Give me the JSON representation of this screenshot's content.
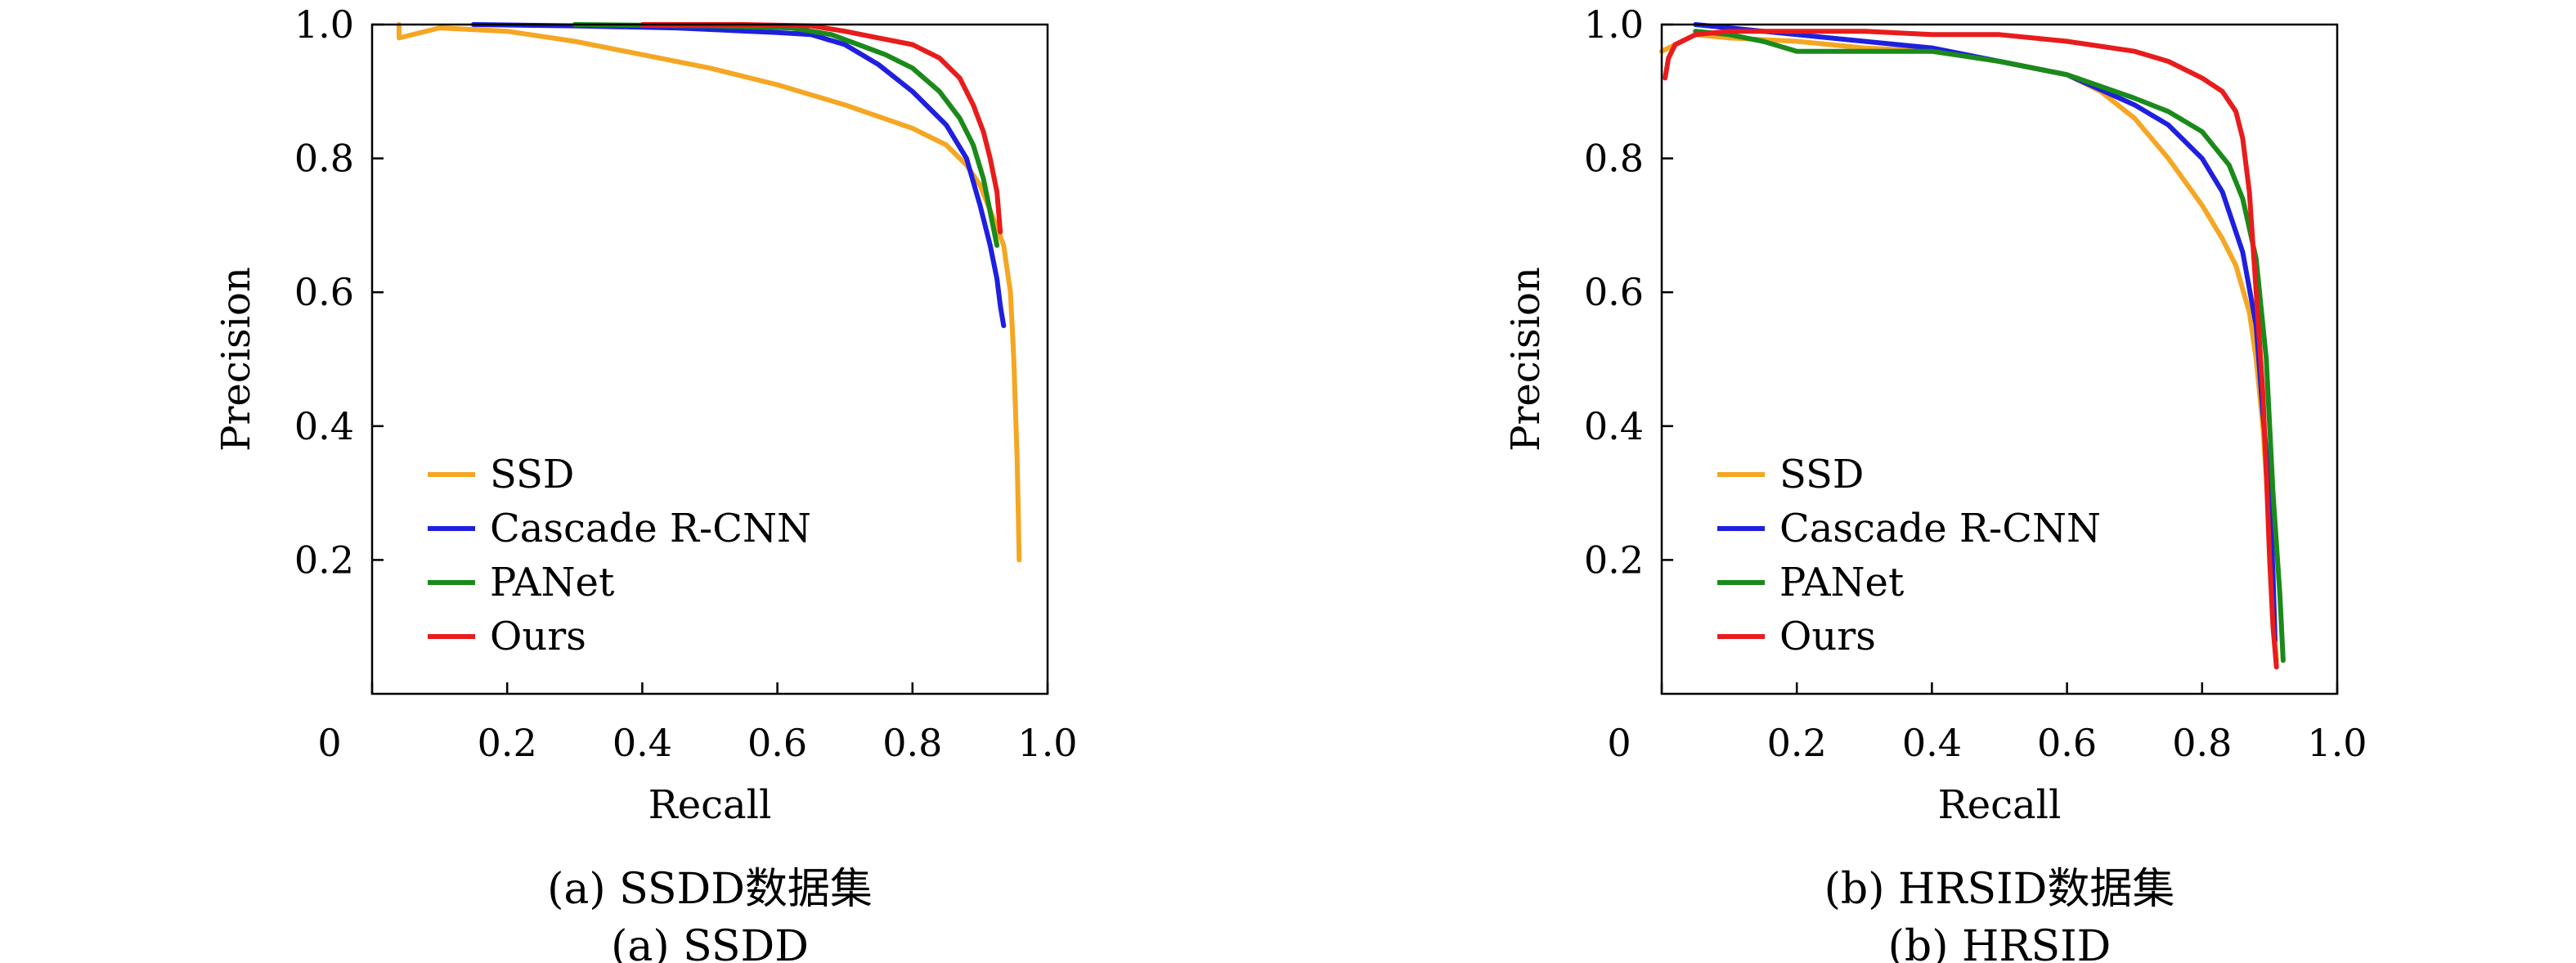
{
  "colors": {
    "SSD": "#f5a623",
    "Cascade R-CNN": "#1f1fe0",
    "PANet": "#1a8a1a",
    "Ours": "#e81c1c"
  },
  "chart_data": [
    {
      "type": "line",
      "xlabel": "Recall",
      "ylabel": "Precision",
      "xlim": [
        0,
        1.0
      ],
      "ylim": [
        0,
        1.0
      ],
      "x_tick_labels": [
        "0",
        "0.2",
        "0.4",
        "0.6",
        "0.8",
        "1.0"
      ],
      "y_tick_labels": [
        "0.2",
        "0.4",
        "0.6",
        "0.8",
        "1.0"
      ],
      "grid": false,
      "legend_position": "bottom-left",
      "caption_line1": "(a) SSDD数据集",
      "caption_line2": "(a) SSDD",
      "series": [
        {
          "name": "SSD",
          "x": [
            0.04,
            0.04,
            0.1,
            0.2,
            0.3,
            0.4,
            0.5,
            0.6,
            0.7,
            0.8,
            0.85,
            0.88,
            0.9,
            0.92,
            0.935,
            0.945,
            0.95,
            0.955,
            0.957,
            0.958
          ],
          "y": [
            1.0,
            0.98,
            0.995,
            0.99,
            0.975,
            0.955,
            0.935,
            0.91,
            0.88,
            0.845,
            0.82,
            0.79,
            0.76,
            0.71,
            0.67,
            0.6,
            0.5,
            0.35,
            0.25,
            0.2
          ]
        },
        {
          "name": "Cascade R-CNN",
          "x": [
            0.15,
            0.3,
            0.45,
            0.6,
            0.65,
            0.7,
            0.75,
            0.8,
            0.85,
            0.88,
            0.9,
            0.915,
            0.925,
            0.93,
            0.935
          ],
          "y": [
            1.0,
            0.998,
            0.995,
            0.988,
            0.985,
            0.97,
            0.94,
            0.9,
            0.85,
            0.8,
            0.73,
            0.67,
            0.62,
            0.58,
            0.55
          ]
        },
        {
          "name": "PANet",
          "x": [
            0.3,
            0.5,
            0.62,
            0.68,
            0.72,
            0.76,
            0.8,
            0.84,
            0.87,
            0.89,
            0.905,
            0.915,
            0.925
          ],
          "y": [
            1.0,
            0.998,
            0.995,
            0.985,
            0.97,
            0.955,
            0.935,
            0.9,
            0.86,
            0.82,
            0.77,
            0.72,
            0.67
          ]
        },
        {
          "name": "Ours",
          "x": [
            0.4,
            0.55,
            0.65,
            0.7,
            0.75,
            0.8,
            0.84,
            0.87,
            0.89,
            0.905,
            0.915,
            0.925,
            0.93
          ],
          "y": [
            1.0,
            1.0,
            0.998,
            0.99,
            0.98,
            0.97,
            0.95,
            0.92,
            0.88,
            0.84,
            0.8,
            0.75,
            0.69
          ]
        }
      ]
    },
    {
      "type": "line",
      "xlabel": "Recall",
      "ylabel": "Precision",
      "xlim": [
        0,
        1.0
      ],
      "ylim": [
        0,
        1.0
      ],
      "x_tick_labels": [
        "0",
        "0.2",
        "0.4",
        "0.6",
        "0.8",
        "1.0"
      ],
      "y_tick_labels": [
        "0.2",
        "0.4",
        "0.6",
        "0.8",
        "1.0"
      ],
      "grid": false,
      "legend_position": "bottom-left",
      "caption_line1": "(b) HRSID数据集",
      "caption_line2": "(b) HRSID",
      "series": [
        {
          "name": "SSD",
          "x": [
            0.0,
            0.05,
            0.1,
            0.2,
            0.3,
            0.4,
            0.5,
            0.6,
            0.65,
            0.7,
            0.75,
            0.8,
            0.83,
            0.85,
            0.87,
            0.88,
            0.89,
            0.9,
            0.905,
            0.91
          ],
          "y": [
            0.96,
            0.985,
            0.98,
            0.975,
            0.965,
            0.96,
            0.945,
            0.925,
            0.9,
            0.86,
            0.8,
            0.73,
            0.68,
            0.64,
            0.57,
            0.5,
            0.4,
            0.25,
            0.12,
            0.05
          ]
        },
        {
          "name": "Cascade R-CNN",
          "x": [
            0.05,
            0.1,
            0.2,
            0.3,
            0.4,
            0.5,
            0.6,
            0.7,
            0.75,
            0.8,
            0.83,
            0.86,
            0.88,
            0.89,
            0.9,
            0.905,
            0.908
          ],
          "y": [
            1.0,
            0.995,
            0.985,
            0.975,
            0.965,
            0.945,
            0.925,
            0.88,
            0.85,
            0.8,
            0.75,
            0.66,
            0.55,
            0.42,
            0.3,
            0.18,
            0.08
          ]
        },
        {
          "name": "PANet",
          "x": [
            0.05,
            0.1,
            0.15,
            0.2,
            0.3,
            0.4,
            0.5,
            0.6,
            0.7,
            0.75,
            0.8,
            0.84,
            0.86,
            0.88,
            0.895,
            0.905,
            0.915,
            0.92
          ],
          "y": [
            0.99,
            0.985,
            0.975,
            0.96,
            0.96,
            0.96,
            0.945,
            0.925,
            0.89,
            0.87,
            0.84,
            0.79,
            0.74,
            0.65,
            0.5,
            0.3,
            0.15,
            0.05
          ]
        },
        {
          "name": "Ours",
          "x": [
            0.005,
            0.01,
            0.02,
            0.05,
            0.1,
            0.2,
            0.3,
            0.4,
            0.5,
            0.6,
            0.7,
            0.75,
            0.8,
            0.83,
            0.85,
            0.86,
            0.87,
            0.88,
            0.89,
            0.895,
            0.9,
            0.905,
            0.91
          ],
          "y": [
            0.92,
            0.95,
            0.97,
            0.985,
            0.99,
            0.99,
            0.99,
            0.985,
            0.985,
            0.975,
            0.96,
            0.945,
            0.92,
            0.9,
            0.87,
            0.83,
            0.75,
            0.6,
            0.45,
            0.33,
            0.2,
            0.1,
            0.04
          ]
        }
      ]
    }
  ]
}
